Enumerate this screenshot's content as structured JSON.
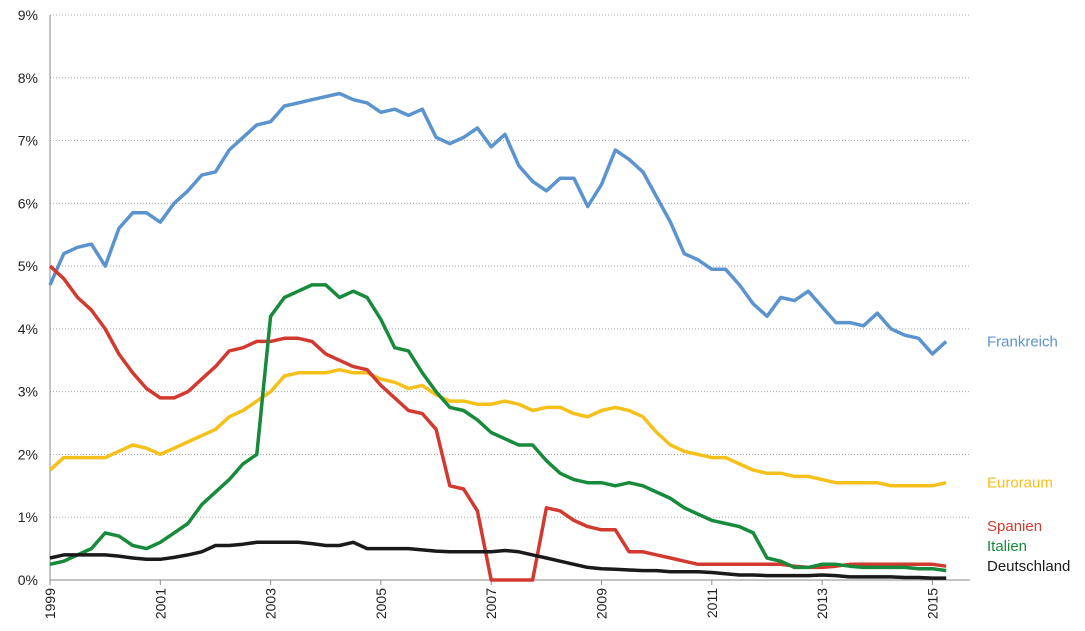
{
  "chart_data": {
    "type": "line",
    "x": [
      1999,
      1999.25,
      1999.5,
      1999.75,
      2000,
      2000.25,
      2000.5,
      2000.75,
      2001,
      2001.25,
      2001.5,
      2001.75,
      2002,
      2002.25,
      2002.5,
      2002.75,
      2003,
      2003.25,
      2003.5,
      2003.75,
      2004,
      2004.25,
      2004.5,
      2004.75,
      2005,
      2005.25,
      2005.5,
      2005.75,
      2006,
      2006.25,
      2006.5,
      2006.75,
      2007,
      2007.25,
      2007.5,
      2007.75,
      2008,
      2008.25,
      2008.5,
      2008.75,
      2009,
      2009.25,
      2009.5,
      2009.75,
      2010,
      2010.25,
      2010.5,
      2010.75,
      2011,
      2011.25,
      2011.5,
      2011.75,
      2012,
      2012.25,
      2012.5,
      2012.75,
      2013,
      2013.25,
      2013.5,
      2013.75,
      2014,
      2014.25,
      2014.5,
      2014.75,
      2015,
      2015.25
    ],
    "series": [
      {
        "name": "Frankreich",
        "color": "#5b93cf",
        "values": [
          4.7,
          5.2,
          5.3,
          5.35,
          5.0,
          5.6,
          5.85,
          5.85,
          5.7,
          6.0,
          6.2,
          6.45,
          6.5,
          6.85,
          7.05,
          7.25,
          7.3,
          7.55,
          7.6,
          7.65,
          7.7,
          7.75,
          7.65,
          7.6,
          7.45,
          7.5,
          7.4,
          7.5,
          7.05,
          6.95,
          7.05,
          7.2,
          6.9,
          7.1,
          6.6,
          6.35,
          6.2,
          6.4,
          6.4,
          5.95,
          6.3,
          6.85,
          6.7,
          6.5,
          6.1,
          5.7,
          5.2,
          5.1,
          4.95,
          4.95,
          4.7,
          4.4,
          4.2,
          4.5,
          4.45,
          4.6,
          4.35,
          4.1,
          4.1,
          4.05,
          4.25,
          4.0,
          3.9,
          3.85,
          3.6,
          3.8
        ]
      },
      {
        "name": "Euroraum",
        "color": "#f5c01a",
        "values": [
          1.75,
          1.95,
          1.95,
          1.95,
          1.95,
          2.05,
          2.15,
          2.1,
          2.0,
          2.1,
          2.2,
          2.3,
          2.4,
          2.6,
          2.7,
          2.85,
          3.0,
          3.25,
          3.3,
          3.3,
          3.3,
          3.35,
          3.3,
          3.3,
          3.2,
          3.15,
          3.05,
          3.1,
          2.95,
          2.85,
          2.85,
          2.8,
          2.8,
          2.85,
          2.8,
          2.7,
          2.75,
          2.75,
          2.65,
          2.6,
          2.7,
          2.75,
          2.7,
          2.6,
          2.35,
          2.15,
          2.05,
          2.0,
          1.95,
          1.95,
          1.85,
          1.75,
          1.7,
          1.7,
          1.65,
          1.65,
          1.6,
          1.55,
          1.55,
          1.55,
          1.55,
          1.5,
          1.5,
          1.5,
          1.5,
          1.55
        ]
      },
      {
        "name": "Spanien",
        "color": "#d23a2f",
        "values": [
          5.0,
          4.8,
          4.5,
          4.3,
          4.0,
          3.6,
          3.3,
          3.05,
          2.9,
          2.9,
          3.0,
          3.2,
          3.4,
          3.65,
          3.7,
          3.8,
          3.8,
          3.85,
          3.85,
          3.8,
          3.6,
          3.5,
          3.4,
          3.35,
          3.1,
          2.9,
          2.7,
          2.65,
          2.4,
          1.5,
          1.45,
          1.1,
          0,
          0,
          0,
          0,
          1.15,
          1.1,
          0.95,
          0.85,
          0.8,
          0.8,
          0.45,
          0.45,
          0.4,
          0.35,
          0.3,
          0.25,
          0.25,
          0.25,
          0.25,
          0.25,
          0.25,
          0.25,
          0.22,
          0.2,
          0.2,
          0.22,
          0.25,
          0.25,
          0.25,
          0.25,
          0.25,
          0.25,
          0.25,
          0.22
        ]
      },
      {
        "name": "Italien",
        "color": "#178a3c",
        "values": [
          0.25,
          0.3,
          0.4,
          0.5,
          0.75,
          0.7,
          0.55,
          0.5,
          0.6,
          0.75,
          0.9,
          1.2,
          1.4,
          1.6,
          1.85,
          2.0,
          4.2,
          4.5,
          4.6,
          4.7,
          4.7,
          4.5,
          4.6,
          4.5,
          4.15,
          3.7,
          3.65,
          3.3,
          3.0,
          2.75,
          2.7,
          2.55,
          2.35,
          2.25,
          2.15,
          2.15,
          1.9,
          1.7,
          1.6,
          1.55,
          1.55,
          1.5,
          1.55,
          1.5,
          1.4,
          1.3,
          1.15,
          1.05,
          0.95,
          0.9,
          0.85,
          0.75,
          0.35,
          0.3,
          0.2,
          0.2,
          0.25,
          0.25,
          0.22,
          0.2,
          0.2,
          0.2,
          0.2,
          0.18,
          0.18,
          0.15
        ]
      },
      {
        "name": "Deutschland",
        "color": "#1a1a1a",
        "values": [
          0.35,
          0.4,
          0.4,
          0.4,
          0.4,
          0.38,
          0.35,
          0.33,
          0.33,
          0.36,
          0.4,
          0.45,
          0.55,
          0.55,
          0.57,
          0.6,
          0.6,
          0.6,
          0.6,
          0.58,
          0.55,
          0.55,
          0.6,
          0.5,
          0.5,
          0.5,
          0.5,
          0.48,
          0.46,
          0.45,
          0.45,
          0.45,
          0.45,
          0.47,
          0.45,
          0.4,
          0.35,
          0.3,
          0.25,
          0.2,
          0.18,
          0.17,
          0.16,
          0.15,
          0.15,
          0.13,
          0.13,
          0.13,
          0.12,
          0.1,
          0.08,
          0.08,
          0.07,
          0.07,
          0.07,
          0.07,
          0.08,
          0.07,
          0.05,
          0.05,
          0.05,
          0.05,
          0.04,
          0.04,
          0.03,
          0.03
        ]
      }
    ],
    "xlim": [
      1999,
      2015.5
    ],
    "xticks": [
      1999,
      2001,
      2003,
      2005,
      2007,
      2009,
      2011,
      2013,
      2015
    ],
    "ylim": [
      0,
      9
    ],
    "yticks": [
      {
        "value": 0,
        "label": "0%"
      },
      {
        "value": 1,
        "label": "1%"
      },
      {
        "value": 2,
        "label": "2%"
      },
      {
        "value": 3,
        "label": "3%"
      },
      {
        "value": 4,
        "label": "4%"
      },
      {
        "value": 5,
        "label": "5%"
      },
      {
        "value": 6,
        "label": "6%"
      },
      {
        "value": 7,
        "label": "7%"
      },
      {
        "value": 8,
        "label": "8%"
      },
      {
        "value": 9,
        "label": "9%"
      }
    ],
    "grid": true
  }
}
